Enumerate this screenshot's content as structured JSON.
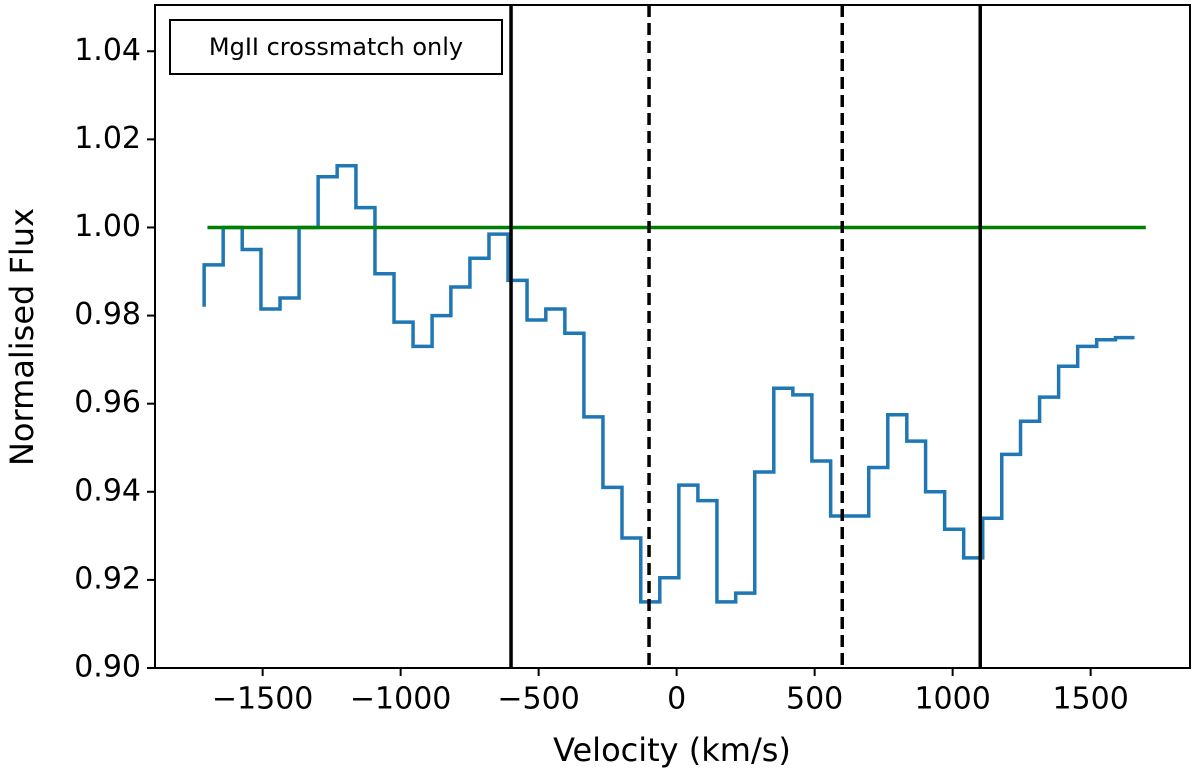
{
  "chart_data": {
    "type": "line",
    "drawstyle": "steps-post",
    "xlabel": "Velocity (km/s)",
    "ylabel": "Normalised Flux",
    "annotation": "MgII crossmatch only",
    "xlim": [
      -1890,
      1860
    ],
    "ylim": [
      0.9,
      1.0505
    ],
    "xticks": [
      {
        "value": -1500,
        "label": "−1500"
      },
      {
        "value": -1000,
        "label": "−1000"
      },
      {
        "value": -500,
        "label": "−500"
      },
      0,
      500,
      1000,
      1500
    ],
    "yticks": [
      {
        "value": 0.9,
        "label": "0.90"
      },
      0.92,
      0.94,
      0.96,
      0.98,
      {
        "value": 1.0,
        "label": "1.00"
      },
      1.02,
      1.04
    ],
    "series": [
      {
        "color": "#1f77b4",
        "x": [
          -1712,
          -1712,
          -1643,
          -1574,
          -1506,
          -1437,
          -1368,
          -1299,
          -1230,
          -1162,
          -1093,
          -1024,
          -955,
          -886,
          -818,
          -749,
          -680,
          -611,
          -542,
          -474,
          -405,
          -336,
          -267,
          -198,
          -130,
          -61,
          8,
          77,
          146,
          214,
          283,
          352,
          421,
          490,
          558,
          627,
          696,
          765,
          834,
          902,
          971,
          1040,
          1109,
          1178,
          1246,
          1315,
          1384,
          1453,
          1522,
          1590,
          1659
        ],
        "values": [
          0.982,
          0.9915,
          1.0,
          0.995,
          0.9815,
          0.984,
          1.0,
          1.0115,
          1.014,
          1.0045,
          0.9895,
          0.9785,
          0.973,
          0.98,
          0.9865,
          0.993,
          0.9985,
          0.988,
          0.979,
          0.9815,
          0.976,
          0.957,
          0.941,
          0.9295,
          0.915,
          0.9205,
          0.9415,
          0.938,
          0.915,
          0.917,
          0.9445,
          0.9635,
          0.962,
          0.947,
          0.9345,
          0.9345,
          0.9455,
          0.9575,
          0.9515,
          0.94,
          0.9315,
          0.925,
          0.934,
          0.9485,
          0.956,
          0.9615,
          0.9685,
          0.973,
          0.9745,
          0.975,
          0.975
        ]
      },
      {
        "color": "#008000",
        "x": [
          -1700,
          1700
        ],
        "values": [
          1.0,
          1.0
        ]
      }
    ],
    "vlines": [
      {
        "x": -600,
        "linestyle": "solid"
      },
      {
        "x": -100,
        "linestyle": "dashed"
      },
      {
        "x": 600,
        "linestyle": "dashed"
      },
      {
        "x": 1100,
        "linestyle": "solid"
      }
    ],
    "vline_color": "#000000"
  }
}
